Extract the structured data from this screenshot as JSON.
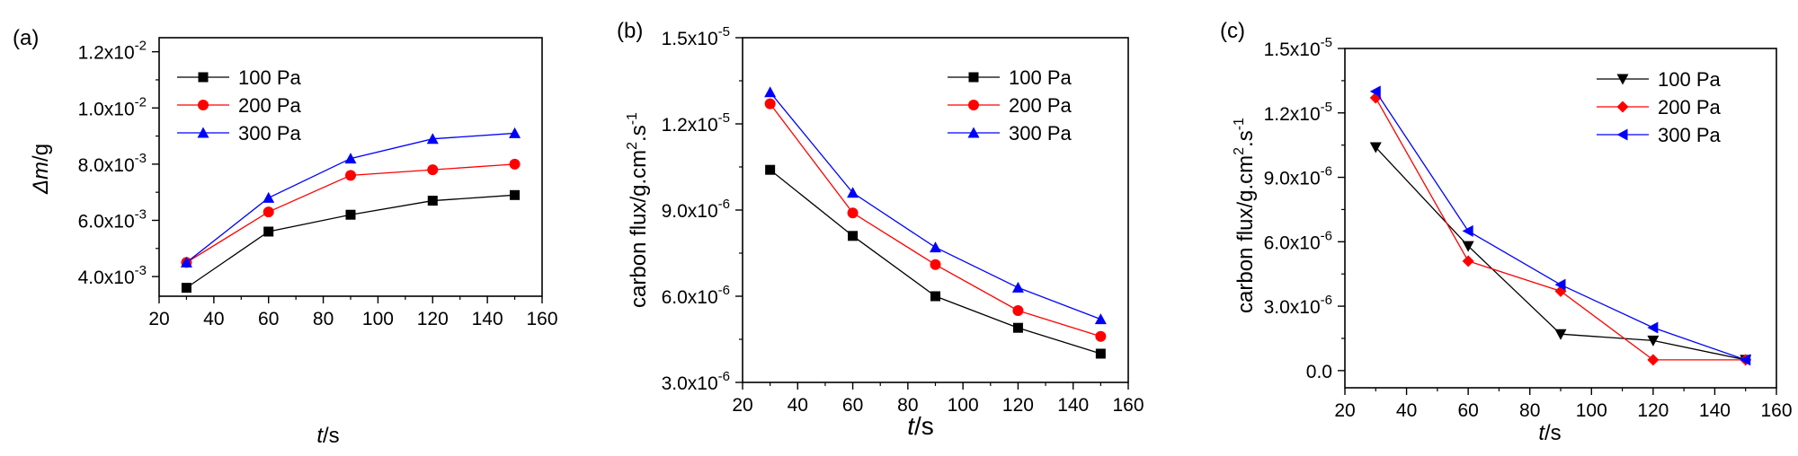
{
  "chart_data": [
    {
      "panel": "(a)",
      "type": "line",
      "ylabel_italic": "Δm",
      "ylabel_rest": "/g",
      "xlabel_italic": "t",
      "xlabel_rest": "/s",
      "xlim": [
        20,
        160
      ],
      "ylim": [
        0.0033,
        0.0125
      ],
      "xticks": [
        20,
        40,
        60,
        80,
        100,
        120,
        140,
        160
      ],
      "yticks": [
        {
          "value": 0.004,
          "mantissa": "4.0x10",
          "exp": "-3"
        },
        {
          "value": 0.006,
          "mantissa": "6.0x10",
          "exp": "-3"
        },
        {
          "value": 0.008,
          "mantissa": "8.0x10",
          "exp": "-3"
        },
        {
          "value": 0.01,
          "mantissa": "1.0x10",
          "exp": "-2"
        },
        {
          "value": 0.012,
          "mantissa": "1.2x10",
          "exp": "-2"
        }
      ],
      "legend_position": "top-left",
      "series": [
        {
          "name": "100 Pa",
          "color": "#000000",
          "marker": "square",
          "x": [
            30,
            60,
            90,
            120,
            150
          ],
          "values": [
            0.0036,
            0.0056,
            0.0062,
            0.0067,
            0.0069
          ]
        },
        {
          "name": "200 Pa",
          "color": "#ff0000",
          "marker": "circle",
          "x": [
            30,
            60,
            90,
            120,
            150
          ],
          "values": [
            0.0045,
            0.0063,
            0.0076,
            0.0078,
            0.008
          ]
        },
        {
          "name": "300 Pa",
          "color": "#0000ff",
          "marker": "triangle-up",
          "x": [
            30,
            60,
            90,
            120,
            150
          ],
          "values": [
            0.0045,
            0.0068,
            0.0082,
            0.0089,
            0.0091
          ]
        }
      ]
    },
    {
      "panel": "(b)",
      "type": "line",
      "ylabel_text": "carbon flux/g.cm",
      "ylabel_sup1": "2",
      "ylabel_mid": ".s",
      "ylabel_sup2": "-1",
      "xlabel_italic": "t",
      "xlabel_rest": "/s",
      "xlim": [
        20,
        160
      ],
      "ylim": [
        3e-06,
        1.5e-05
      ],
      "xticks": [
        20,
        40,
        60,
        80,
        100,
        120,
        140,
        160
      ],
      "yticks": [
        {
          "value": 3e-06,
          "mantissa": "3.0x10",
          "exp": "-6"
        },
        {
          "value": 6e-06,
          "mantissa": "6.0x10",
          "exp": "-6"
        },
        {
          "value": 9e-06,
          "mantissa": "9.0x10",
          "exp": "-6"
        },
        {
          "value": 1.2e-05,
          "mantissa": "1.2x10",
          "exp": "-5"
        },
        {
          "value": 1.5e-05,
          "mantissa": "1.5x10",
          "exp": "-5"
        }
      ],
      "legend_position": "top-right",
      "series": [
        {
          "name": "100 Pa",
          "color": "#000000",
          "marker": "square",
          "x": [
            30,
            60,
            90,
            120,
            150
          ],
          "values": [
            1.04e-05,
            8.1e-06,
            6e-06,
            4.9e-06,
            4e-06
          ]
        },
        {
          "name": "200 Pa",
          "color": "#ff0000",
          "marker": "circle",
          "x": [
            30,
            60,
            90,
            120,
            150
          ],
          "values": [
            1.27e-05,
            8.9e-06,
            7.1e-06,
            5.5e-06,
            4.6e-06
          ]
        },
        {
          "name": "300 Pa",
          "color": "#0000ff",
          "marker": "triangle-up",
          "x": [
            30,
            60,
            90,
            120,
            150
          ],
          "values": [
            1.31e-05,
            9.6e-06,
            7.7e-06,
            6.3e-06,
            5.2e-06
          ]
        }
      ]
    },
    {
      "panel": "(c)",
      "type": "line",
      "ylabel_text": "carbon flux/g.cm",
      "ylabel_sup1": "2",
      "ylabel_mid": ".s",
      "ylabel_sup2": "-1",
      "xlabel_italic": "t",
      "xlabel_rest": "/s",
      "xlim": [
        20,
        160
      ],
      "ylim": [
        -8e-07,
        1.5e-05
      ],
      "xticks": [
        20,
        40,
        60,
        80,
        100,
        120,
        140,
        160
      ],
      "yticks": [
        {
          "value": 0,
          "mantissa": "0.0",
          "exp": ""
        },
        {
          "value": 3e-06,
          "mantissa": "3.0x10",
          "exp": "-6"
        },
        {
          "value": 6e-06,
          "mantissa": "6.0x10",
          "exp": "-6"
        },
        {
          "value": 9e-06,
          "mantissa": "9.0x10",
          "exp": "-6"
        },
        {
          "value": 1.2e-05,
          "mantissa": "1.2x10",
          "exp": "-5"
        },
        {
          "value": 1.5e-05,
          "mantissa": "1.5x10",
          "exp": "-5"
        }
      ],
      "legend_position": "top-right",
      "series": [
        {
          "name": "100 Pa",
          "color": "#000000",
          "marker": "triangle-down",
          "x": [
            30,
            60,
            90,
            120,
            150
          ],
          "values": [
            1.04e-05,
            5.8e-06,
            1.7e-06,
            1.4e-06,
            5e-07
          ]
        },
        {
          "name": "200 Pa",
          "color": "#ff0000",
          "marker": "diamond",
          "x": [
            30,
            60,
            90,
            120,
            150
          ],
          "values": [
            1.27e-05,
            5.1e-06,
            3.7e-06,
            5e-07,
            5e-07
          ]
        },
        {
          "name": "300 Pa",
          "color": "#0000ff",
          "marker": "triangle-left",
          "x": [
            30,
            60,
            90,
            120,
            150
          ],
          "values": [
            1.3e-05,
            6.5e-06,
            4e-06,
            2e-06,
            5e-07
          ]
        }
      ]
    }
  ]
}
